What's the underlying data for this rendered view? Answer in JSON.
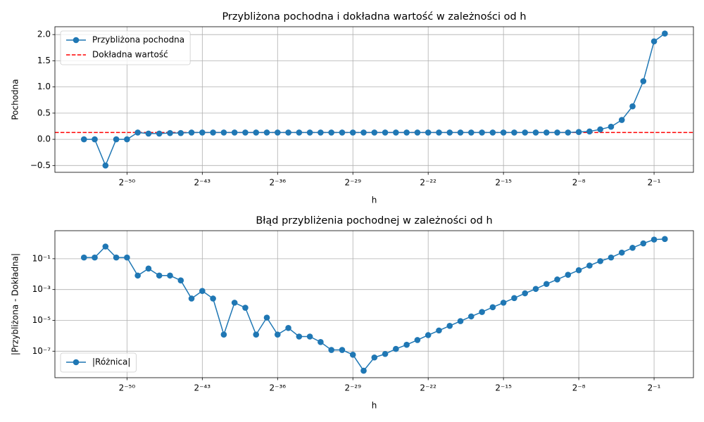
{
  "chart_data": [
    {
      "type": "line",
      "title": "Przybliżona pochodna i dokładna wartość w zależności od h",
      "xlabel": "h",
      "ylabel": "Pochodna",
      "xscale": "log",
      "xbase": 2,
      "yscale": "linear",
      "grid": true,
      "legend": "upper left",
      "x": [
        5.551115123125783e-17,
        1.1102230246251565e-16,
        2.220446049250313e-16,
        4.440892098500626e-16,
        8.881784197001252e-16,
        1.7763568394002505e-15,
        3.552713678800501e-15,
        7.105427357601002e-15,
        1.4210854715202004e-14,
        2.842170943040401e-14,
        5.684341886080802e-14,
        1.1368683772161603e-13,
        2.2737367544323206e-13,
        4.547473508864641e-13,
        9.094947017729282e-13,
        1.8189894035458565e-12,
        3.637978807091713e-12,
        7.275957614183426e-12,
        1.4551915228366852e-11,
        2.9103830456733704e-11,
        5.820766091346741e-11,
        1.1641532182693481e-10,
        2.3283064365386963e-10,
        4.656612873077393e-10,
        9.313225746154785e-10,
        1.862645149230957e-09,
        3.725290298461914e-09,
        7.450580596923828e-09,
        1.4901161193847656e-08,
        2.9802322387695312e-08,
        5.960464477539063e-08,
        1.1920928955078125e-07,
        2.384185791015625e-07,
        4.76837158203125e-07,
        9.5367431640625e-07,
        1.9073486328125e-06,
        3.814697265625e-06,
        7.62939453125e-06,
        1.52587890625e-05,
        3.0517578125e-05,
        6.103515625e-05,
        0.0001220703125,
        0.000244140625,
        0.00048828125,
        0.0009765625,
        0.001953125,
        0.00390625,
        0.0078125,
        0.015625,
        0.03125,
        0.0625,
        0.125,
        0.25,
        0.5,
        1
      ],
      "series": [
        {
          "name": "Przybliżona pochodna",
          "color": "#1f77b4",
          "values": [
            0,
            0,
            -0.5,
            0,
            0,
            0.13,
            0.11,
            0.11,
            0.12,
            0.12,
            0.13,
            0.13,
            0.13,
            0.13,
            0.13,
            0.13,
            0.13,
            0.13,
            0.13,
            0.13,
            0.13,
            0.13,
            0.13,
            0.13,
            0.13,
            0.13,
            0.13,
            0.13,
            0.13,
            0.13,
            0.13,
            0.13,
            0.13,
            0.13,
            0.13,
            0.13,
            0.13,
            0.13,
            0.13,
            0.13,
            0.13,
            0.13,
            0.13,
            0.13,
            0.13,
            0.13,
            0.14,
            0.15,
            0.19,
            0.24,
            0.37,
            0.63,
            1.11,
            1.87,
            2.02
          ]
        }
      ],
      "reference_lines": [
        {
          "name": "Dokładna wartość",
          "color": "#ff0000",
          "value": 0.13,
          "linestyle": "dashed"
        }
      ],
      "xlim": [
        8.54e-18,
        6.32
      ],
      "xticks": [
        {
          "value": 8.881784197001252e-16,
          "label": "2⁻⁵⁰"
        },
        {
          "value": 1.1368683772161603e-13,
          "label": "2⁻⁴³"
        },
        {
          "value": 1.4551915228366852e-11,
          "label": "2⁻³⁶"
        },
        {
          "value": 1.862645149230957e-09,
          "label": "2⁻²⁹"
        },
        {
          "value": 2.384185791015625e-07,
          "label": "2⁻²²"
        },
        {
          "value": 3.0517578125e-05,
          "label": "2⁻¹⁵"
        },
        {
          "value": 0.00390625,
          "label": "2⁻⁸"
        },
        {
          "value": 0.5,
          "label": "2⁻¹"
        }
      ],
      "ylim": [
        -0.63,
        2.15
      ],
      "yticks": [
        {
          "value": -0.5,
          "label": "−0.5"
        },
        {
          "value": 0,
          "label": "0.0"
        },
        0.5,
        {
          "value": 1,
          "label": "1.0"
        },
        1.5,
        {
          "value": 2,
          "label": "2.0"
        }
      ]
    },
    {
      "type": "line",
      "title": "Błąd przybliżenia pochodnej w zależności od h",
      "xlabel": "h",
      "ylabel": "|Przybliżona - Dokładna|",
      "xscale": "log",
      "xbase": 2,
      "yscale": "log",
      "grid": true,
      "legend": "lower left",
      "x": [
        5.551115123125783e-17,
        1.1102230246251565e-16,
        2.220446049250313e-16,
        4.440892098500626e-16,
        8.881784197001252e-16,
        1.7763568394002505e-15,
        3.552713678800501e-15,
        7.105427357601002e-15,
        1.4210854715202004e-14,
        2.842170943040401e-14,
        5.684341886080802e-14,
        1.1368683772161603e-13,
        2.2737367544323206e-13,
        4.547473508864641e-13,
        9.094947017729282e-13,
        1.8189894035458565e-12,
        3.637978807091713e-12,
        7.275957614183426e-12,
        1.4551915228366852e-11,
        2.9103830456733704e-11,
        5.820766091346741e-11,
        1.1641532182693481e-10,
        2.3283064365386963e-10,
        4.656612873077393e-10,
        9.313225746154785e-10,
        1.862645149230957e-09,
        3.725290298461914e-09,
        7.450580596923828e-09,
        1.4901161193847656e-08,
        2.9802322387695312e-08,
        5.960464477539063e-08,
        1.1920928955078125e-07,
        2.384185791015625e-07,
        4.76837158203125e-07,
        9.5367431640625e-07,
        1.9073486328125e-06,
        3.814697265625e-06,
        7.62939453125e-06,
        1.52587890625e-05,
        3.0517578125e-05,
        6.103515625e-05,
        0.0001220703125,
        0.000244140625,
        0.00048828125,
        0.0009765625,
        0.001953125,
        0.00390625,
        0.0078125,
        0.015625,
        0.03125,
        0.0625,
        0.125,
        0.25,
        0.5,
        1
      ],
      "series": [
        {
          "name": "|Różnica|",
          "color": "#1f77b4",
          "values": [
            0.12,
            0.12,
            0.62,
            0.12,
            0.12,
            0.0081,
            0.023,
            0.0081,
            0.0081,
            0.0039,
            0.00026,
            0.00081,
            0.00026,
            1.2e-06,
            0.00014,
            6.6e-05,
            1.2e-06,
            1.5e-05,
            1.2e-06,
            3.2e-06,
            8.9e-07,
            8.9e-07,
            3.9e-07,
            1.2e-07,
            1.2e-07,
            5.9e-08,
            5.4e-09,
            3.9e-08,
            6.6e-08,
            1.4e-07,
            2.6e-07,
            5.3e-07,
            1.1e-06,
            2.2e-06,
            4.4e-06,
            8.9e-06,
            1.8e-05,
            3.5e-05,
            7.1e-05,
            0.00014,
            0.00028,
            0.00057,
            0.0011,
            0.0023,
            0.0045,
            0.0091,
            0.018,
            0.036,
            0.07,
            0.12,
            0.25,
            0.51,
            0.99,
            1.75,
            1.9
          ]
        }
      ],
      "xlim": [
        8.54e-18,
        6.32
      ],
      "xticks": [
        {
          "value": 8.881784197001252e-16,
          "label": "2⁻⁵⁰"
        },
        {
          "value": 1.1368683772161603e-13,
          "label": "2⁻⁴³"
        },
        {
          "value": 1.4551915228366852e-11,
          "label": "2⁻³⁶"
        },
        {
          "value": 1.862645149230957e-09,
          "label": "2⁻²⁹"
        },
        {
          "value": 2.384185791015625e-07,
          "label": "2⁻²²"
        },
        {
          "value": 3.0517578125e-05,
          "label": "2⁻¹⁵"
        },
        {
          "value": 0.00390625,
          "label": "2⁻⁸"
        },
        {
          "value": 0.5,
          "label": "2⁻¹"
        }
      ],
      "ylim": [
        1.9e-09,
        6.6
      ],
      "yticks": [
        {
          "value": 1e-07,
          "label": "10⁻⁷"
        },
        {
          "value": 1e-05,
          "label": "10⁻⁵"
        },
        {
          "value": 0.001,
          "label": "10⁻³"
        },
        {
          "value": 0.1,
          "label": "10⁻¹"
        }
      ]
    }
  ]
}
